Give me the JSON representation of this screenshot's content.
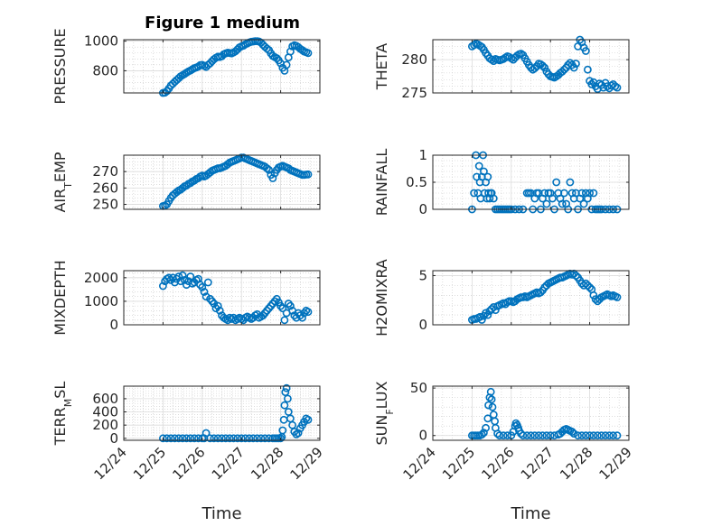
{
  "title": "Figure 1 medium",
  "marker_color": "#0072BD",
  "x_axis": {
    "label": "Time",
    "tick_labels": [
      "12/24",
      "12/25",
      "12/26",
      "12/27",
      "12/28",
      "12/29"
    ],
    "range": [
      "12/24",
      "12/29"
    ]
  },
  "chart_data": [
    {
      "type": "scatter",
      "ylabel": "PRESSURE",
      "ylim": [
        650,
        1010
      ],
      "yticks": [
        800,
        1000
      ],
      "grid": true,
      "x": [
        25.0,
        25.05,
        25.1,
        25.15,
        25.2,
        25.25,
        25.3,
        25.35,
        25.4,
        25.45,
        25.5,
        25.55,
        25.6,
        25.65,
        25.7,
        25.75,
        25.8,
        25.85,
        25.9,
        25.95,
        26.0,
        26.05,
        26.1,
        26.15,
        26.2,
        26.25,
        26.3,
        26.35,
        26.4,
        26.45,
        26.5,
        26.55,
        26.6,
        26.65,
        26.7,
        26.75,
        26.8,
        26.85,
        26.9,
        26.95,
        27.0,
        27.05,
        27.1,
        27.15,
        27.2,
        27.25,
        27.3,
        27.35,
        27.4,
        27.45,
        27.5,
        27.55,
        27.6,
        27.65,
        27.7,
        27.75,
        27.8,
        27.85,
        27.9,
        27.95,
        28.0,
        28.05,
        28.1,
        28.15,
        28.2,
        28.25,
        28.3,
        28.35,
        28.4,
        28.45,
        28.5,
        28.55,
        28.6,
        28.65,
        28.7
      ],
      "y": [
        650,
        652,
        662,
        680,
        700,
        712,
        725,
        738,
        750,
        762,
        770,
        778,
        787,
        795,
        802,
        810,
        818,
        822,
        828,
        838,
        840,
        833,
        826,
        840,
        850,
        865,
        878,
        888,
        895,
        893,
        898,
        912,
        918,
        922,
        920,
        917,
        924,
        932,
        945,
        958,
        965,
        970,
        978,
        985,
        992,
        996,
        998,
        1000,
        1000,
        998,
        990,
        975,
        962,
        950,
        940,
        918,
        900,
        892,
        885,
        870,
        850,
        820,
        800,
        840,
        890,
        930,
        965,
        972,
        968,
        960,
        948,
        940,
        930,
        925,
        920
      ]
    },
    {
      "type": "scatter",
      "ylabel": "THETA",
      "ylim": [
        275,
        283
      ],
      "yticks": [
        275,
        280
      ],
      "grid": true,
      "x": [
        25.0,
        25.05,
        25.1,
        25.15,
        25.2,
        25.25,
        25.3,
        25.35,
        25.4,
        25.45,
        25.5,
        25.55,
        25.6,
        25.65,
        25.7,
        25.75,
        25.8,
        25.85,
        25.9,
        25.95,
        26.0,
        26.05,
        26.1,
        26.15,
        26.2,
        26.25,
        26.3,
        26.35,
        26.4,
        26.45,
        26.5,
        26.55,
        26.6,
        26.65,
        26.7,
        26.75,
        26.8,
        26.85,
        26.9,
        26.95,
        27.0,
        27.05,
        27.1,
        27.15,
        27.2,
        27.25,
        27.3,
        27.35,
        27.4,
        27.45,
        27.5,
        27.55,
        27.6,
        27.65,
        27.7,
        27.75,
        27.8,
        27.85,
        27.9,
        27.95,
        28.0,
        28.05,
        28.1,
        28.15,
        28.2,
        28.25,
        28.3,
        28.35,
        28.4,
        28.45,
        28.5,
        28.55,
        28.6,
        28.65,
        28.7
      ],
      "y": [
        282.0,
        282.2,
        282.4,
        282.3,
        282.1,
        281.9,
        281.5,
        281.0,
        280.6,
        280.2,
        280.0,
        279.8,
        280.1,
        280.0,
        279.9,
        280.0,
        280.1,
        280.3,
        280.5,
        280.4,
        280.2,
        280.0,
        280.3,
        280.6,
        280.8,
        280.9,
        280.7,
        280.2,
        279.7,
        279.2,
        278.8,
        278.5,
        278.7,
        279.0,
        279.4,
        279.3,
        279.1,
        278.8,
        278.2,
        277.8,
        277.5,
        277.4,
        277.3,
        277.5,
        277.7,
        278.0,
        278.2,
        278.5,
        278.8,
        279.2,
        279.5,
        279.2,
        278.8,
        279.4,
        282.0,
        283.0,
        282.6,
        281.8,
        281.3,
        278.5,
        276.8,
        276.3,
        276.6,
        276.0,
        275.6,
        276.4,
        276.2,
        275.8,
        276.5,
        276.0,
        275.7,
        276.1,
        276.3,
        276.0,
        275.8
      ]
    },
    {
      "type": "scatter",
      "ylabel": "AIR_TEMP",
      "ylim": [
        247,
        280
      ],
      "yticks": [
        250,
        260,
        270
      ],
      "grid": true,
      "x": [
        25.0,
        25.05,
        25.1,
        25.15,
        25.2,
        25.25,
        25.3,
        25.35,
        25.4,
        25.45,
        25.5,
        25.55,
        25.6,
        25.65,
        25.7,
        25.75,
        25.8,
        25.85,
        25.9,
        25.95,
        26.0,
        26.05,
        26.1,
        26.15,
        26.2,
        26.25,
        26.3,
        26.35,
        26.4,
        26.45,
        26.5,
        26.55,
        26.6,
        26.65,
        26.7,
        26.75,
        26.8,
        26.85,
        26.9,
        26.95,
        27.0,
        27.05,
        27.1,
        27.15,
        27.2,
        27.25,
        27.3,
        27.35,
        27.4,
        27.45,
        27.5,
        27.55,
        27.6,
        27.65,
        27.7,
        27.75,
        27.8,
        27.85,
        27.9,
        27.95,
        28.0,
        28.05,
        28.1,
        28.15,
        28.2,
        28.25,
        28.3,
        28.35,
        28.4,
        28.45,
        28.5,
        28.55,
        28.6,
        28.65,
        28.7
      ],
      "y": [
        249,
        249.2,
        250,
        252,
        254,
        255.5,
        256.5,
        257.5,
        258.5,
        259,
        260,
        261,
        261.5,
        262.5,
        263,
        264,
        264.5,
        265.5,
        266,
        267,
        267.5,
        267,
        267.5,
        268.5,
        269.5,
        270.5,
        271,
        271.5,
        272,
        272,
        272.5,
        273,
        273.5,
        274.5,
        275.5,
        276,
        276.5,
        277,
        277.5,
        278,
        278.5,
        278.5,
        278,
        277.5,
        277,
        276.5,
        276,
        275.5,
        275,
        274.5,
        274,
        273.5,
        273,
        272,
        271,
        268,
        266,
        269,
        271,
        272.5,
        273,
        273.5,
        273,
        272.5,
        272,
        271,
        270.5,
        270,
        269.5,
        269,
        268.5,
        268,
        268,
        268.2,
        268.3
      ]
    },
    {
      "type": "scatter",
      "ylabel": "RAINFALL",
      "ylim": [
        0,
        1
      ],
      "yticks": [
        0,
        0.5,
        1
      ],
      "grid": true,
      "x": [
        25.0,
        25.05,
        25.1,
        25.12,
        25.15,
        25.18,
        25.2,
        25.22,
        25.25,
        25.28,
        25.3,
        25.32,
        25.35,
        25.38,
        25.4,
        25.42,
        25.45,
        25.48,
        25.5,
        25.55,
        25.6,
        25.65,
        25.7,
        25.75,
        25.8,
        25.85,
        25.9,
        25.95,
        26.0,
        26.1,
        26.2,
        26.3,
        26.4,
        26.45,
        26.5,
        26.55,
        26.6,
        26.65,
        26.7,
        26.75,
        26.8,
        26.85,
        26.9,
        26.95,
        27.0,
        27.05,
        27.1,
        27.15,
        27.2,
        27.25,
        27.3,
        27.35,
        27.4,
        27.45,
        27.5,
        27.55,
        27.6,
        27.65,
        27.7,
        27.75,
        27.8,
        27.85,
        27.9,
        27.95,
        28.0,
        28.05,
        28.1,
        28.15,
        28.2,
        28.25,
        28.3,
        28.4,
        28.5,
        28.6,
        28.7
      ],
      "y": [
        0,
        0.3,
        1.0,
        0.6,
        0.3,
        0.8,
        0.5,
        0.2,
        0.6,
        1.0,
        0.7,
        0.3,
        0.5,
        0.2,
        0.6,
        0.3,
        0.2,
        0.3,
        0.3,
        0.2,
        0,
        0,
        0,
        0,
        0,
        0,
        0,
        0,
        0,
        0,
        0,
        0,
        0.3,
        0.3,
        0.3,
        0,
        0.2,
        0.3,
        0.3,
        0,
        0.2,
        0.3,
        0.1,
        0.3,
        0.3,
        0.2,
        0,
        0.5,
        0.3,
        0.2,
        0.1,
        0.3,
        0.1,
        0,
        0.5,
        0.3,
        0.2,
        0.3,
        0,
        0.2,
        0.3,
        0.1,
        0.3,
        0.2,
        0.3,
        0,
        0.3,
        0,
        0,
        0,
        0,
        0,
        0,
        0,
        0
      ]
    },
    {
      "type": "scatter",
      "ylabel": "MIXDEPTH",
      "ylim": [
        0,
        2300
      ],
      "yticks": [
        0,
        1000,
        2000
      ],
      "grid": true,
      "x": [
        25.0,
        25.05,
        25.1,
        25.15,
        25.2,
        25.25,
        25.3,
        25.35,
        25.4,
        25.45,
        25.5,
        25.55,
        25.6,
        25.65,
        25.7,
        25.75,
        25.8,
        25.85,
        25.9,
        25.95,
        26.0,
        26.05,
        26.1,
        26.15,
        26.2,
        26.25,
        26.3,
        26.35,
        26.4,
        26.45,
        26.5,
        26.55,
        26.6,
        26.65,
        26.7,
        26.75,
        26.8,
        26.85,
        26.9,
        26.95,
        27.0,
        27.05,
        27.1,
        27.15,
        27.2,
        27.25,
        27.3,
        27.35,
        27.4,
        27.45,
        27.5,
        27.55,
        27.6,
        27.65,
        27.7,
        27.75,
        27.8,
        27.85,
        27.9,
        27.95,
        28.0,
        28.05,
        28.1,
        28.15,
        28.2,
        28.25,
        28.3,
        28.35,
        28.4,
        28.45,
        28.5,
        28.55,
        28.6,
        28.65,
        28.7
      ],
      "y": [
        1650,
        1850,
        1950,
        2000,
        1900,
        2000,
        1800,
        1950,
        2050,
        1850,
        2100,
        1900,
        1700,
        1850,
        2050,
        1750,
        1800,
        1900,
        1950,
        1700,
        1600,
        1400,
        1200,
        1800,
        1100,
        1000,
        900,
        700,
        800,
        600,
        400,
        300,
        250,
        200,
        300,
        250,
        300,
        200,
        250,
        300,
        250,
        200,
        300,
        350,
        300,
        250,
        300,
        400,
        450,
        300,
        350,
        400,
        500,
        600,
        700,
        800,
        900,
        1000,
        1100,
        950,
        800,
        700,
        200,
        500,
        900,
        800,
        600,
        400,
        300,
        500,
        400,
        300,
        500,
        600,
        550
      ]
    },
    {
      "type": "scatter",
      "ylabel": "H2OMIXRA",
      "ylim": [
        0,
        5.5
      ],
      "yticks": [
        0,
        5
      ],
      "grid": true,
      "x": [
        25.0,
        25.05,
        25.1,
        25.15,
        25.2,
        25.25,
        25.3,
        25.35,
        25.4,
        25.45,
        25.5,
        25.55,
        25.6,
        25.65,
        25.7,
        25.75,
        25.8,
        25.85,
        25.9,
        25.95,
        26.0,
        26.05,
        26.1,
        26.15,
        26.2,
        26.25,
        26.3,
        26.35,
        26.4,
        26.45,
        26.5,
        26.55,
        26.6,
        26.65,
        26.7,
        26.75,
        26.8,
        26.85,
        26.9,
        26.95,
        27.0,
        27.05,
        27.1,
        27.15,
        27.2,
        27.25,
        27.3,
        27.35,
        27.4,
        27.45,
        27.5,
        27.55,
        27.6,
        27.65,
        27.7,
        27.75,
        27.8,
        27.85,
        27.9,
        27.95,
        28.0,
        28.05,
        28.1,
        28.15,
        28.2,
        28.25,
        28.3,
        28.35,
        28.4,
        28.45,
        28.5,
        28.55,
        28.6,
        28.65,
        28.7
      ],
      "y": [
        0.5,
        0.6,
        0.6,
        0.7,
        0.8,
        0.5,
        0.9,
        1.2,
        1.0,
        1.4,
        1.6,
        1.8,
        1.5,
        1.9,
        2.0,
        2.1,
        2.2,
        2.1,
        2.3,
        2.4,
        2.4,
        2.3,
        2.4,
        2.6,
        2.7,
        2.8,
        2.8,
        2.9,
        2.8,
        2.9,
        3.0,
        3.1,
        3.2,
        3.3,
        3.2,
        3.3,
        3.5,
        3.8,
        4.0,
        4.2,
        4.3,
        4.4,
        4.5,
        4.6,
        4.7,
        4.8,
        4.8,
        4.9,
        5.0,
        5.1,
        5.2,
        5.1,
        5.2,
        5.0,
        4.8,
        4.5,
        4.2,
        4.0,
        4.2,
        4.0,
        3.8,
        3.6,
        3.0,
        2.6,
        2.4,
        2.6,
        2.8,
        2.9,
        3.0,
        3.1,
        3.0,
        2.9,
        3.0,
        2.9,
        2.8
      ]
    },
    {
      "type": "scatter",
      "ylabel": "TERR_MSL",
      "ylim": [
        -30,
        790
      ],
      "yticks": [
        0,
        200,
        400,
        600
      ],
      "grid": true,
      "x": [
        25.0,
        25.1,
        25.2,
        25.3,
        25.4,
        25.5,
        25.6,
        25.7,
        25.8,
        25.9,
        26.0,
        26.05,
        26.1,
        26.2,
        26.3,
        26.4,
        26.5,
        26.6,
        26.7,
        26.8,
        26.9,
        27.0,
        27.1,
        27.2,
        27.3,
        27.4,
        27.5,
        27.6,
        27.7,
        27.8,
        27.85,
        27.9,
        27.95,
        28.0,
        28.03,
        28.05,
        28.08,
        28.1,
        28.12,
        28.15,
        28.18,
        28.2,
        28.25,
        28.3,
        28.35,
        28.4,
        28.45,
        28.5,
        28.55,
        28.6,
        28.65,
        28.7
      ],
      "y": [
        0,
        0,
        0,
        0,
        0,
        0,
        0,
        0,
        0,
        0,
        0,
        0,
        80,
        0,
        0,
        0,
        0,
        0,
        0,
        0,
        0,
        0,
        0,
        0,
        0,
        0,
        0,
        0,
        0,
        0,
        0,
        0,
        0,
        0,
        20,
        120,
        280,
        500,
        700,
        760,
        600,
        400,
        300,
        200,
        100,
        60,
        80,
        150,
        200,
        250,
        300,
        280
      ]
    },
    {
      "type": "scatter",
      "ylabel": "SUN_FLUX",
      "ylim": [
        -5,
        52
      ],
      "yticks": [
        0,
        50
      ],
      "grid": true,
      "x": [
        25.0,
        25.05,
        25.1,
        25.15,
        25.2,
        25.25,
        25.3,
        25.35,
        25.4,
        25.42,
        25.45,
        25.48,
        25.5,
        25.52,
        25.55,
        25.58,
        25.6,
        25.65,
        25.7,
        25.8,
        25.9,
        26.0,
        26.05,
        26.1,
        26.12,
        26.15,
        26.18,
        26.2,
        26.25,
        26.3,
        26.4,
        26.5,
        26.6,
        26.7,
        26.8,
        26.9,
        27.0,
        27.1,
        27.2,
        27.25,
        27.3,
        27.35,
        27.4,
        27.45,
        27.5,
        27.55,
        27.6,
        27.7,
        27.8,
        27.9,
        28.0,
        28.1,
        28.2,
        28.3,
        28.4,
        28.5,
        28.6,
        28.7
      ],
      "y": [
        0,
        0,
        0,
        0,
        0,
        1,
        3,
        8,
        18,
        32,
        40,
        46,
        38,
        30,
        22,
        15,
        8,
        2,
        0,
        0,
        0,
        0,
        4,
        10,
        13,
        11,
        8,
        5,
        2,
        0,
        0,
        0,
        0,
        0,
        0,
        0,
        0,
        0,
        1,
        2,
        4,
        6,
        7,
        6,
        5,
        4,
        2,
        0,
        0,
        0,
        0,
        0,
        0,
        0,
        0,
        0,
        0,
        0
      ]
    }
  ]
}
